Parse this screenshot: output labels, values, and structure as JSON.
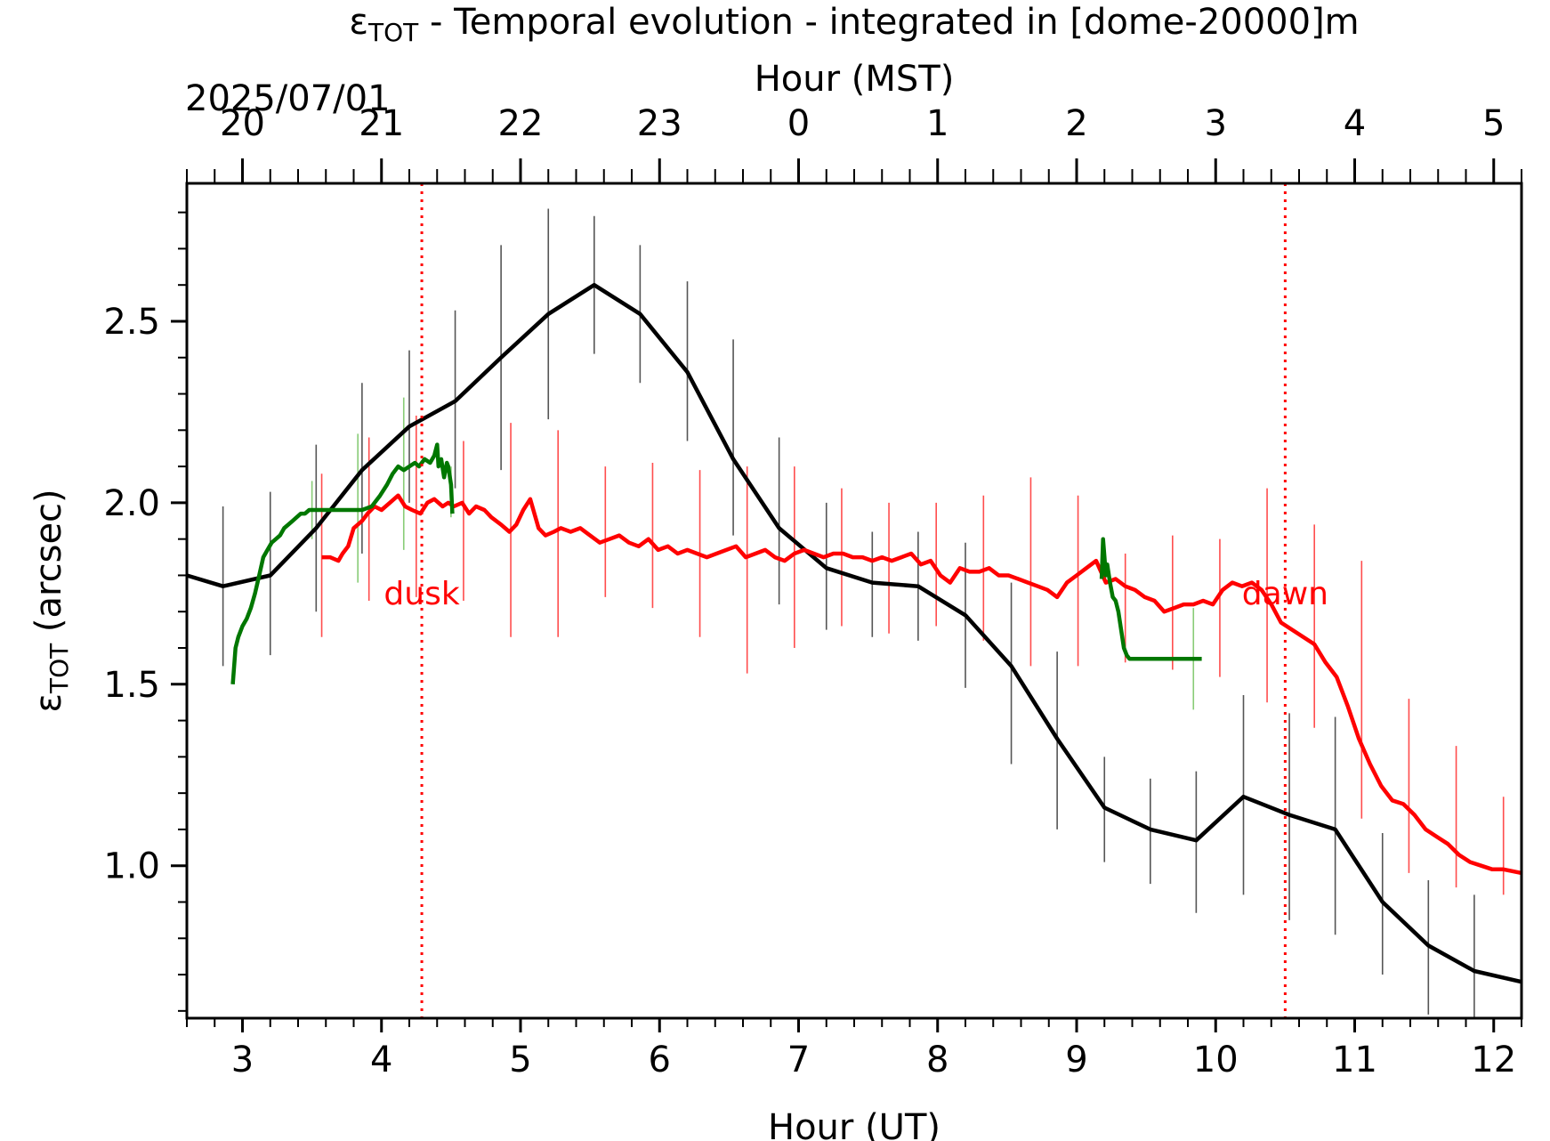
{
  "chart_data": {
    "type": "line",
    "title_main": "ε",
    "title_sub": "TOT",
    "title_rest": " - Temporal evolution - integrated in [dome-20000]m",
    "xlabel": "Hour (UT)",
    "xlabel_top": "Hour (MST)",
    "date_label": "2025/07/01",
    "ylabel_main": "ε",
    "ylabel_sub": "TOT",
    "ylabel_rest": " (arcsec)",
    "xlim": [
      2.6,
      12.2
    ],
    "ylim": [
      0.58,
      2.88
    ],
    "x_ticks": [
      3,
      4,
      5,
      6,
      7,
      8,
      9,
      10,
      11,
      12
    ],
    "x_tick_labels": [
      "3",
      "4",
      "5",
      "6",
      "7",
      "8",
      "9",
      "10",
      "11",
      "12"
    ],
    "y_ticks": [
      1.0,
      1.5,
      2.0,
      2.5
    ],
    "y_tick_labels": [
      "1.0",
      "1.5",
      "2.0",
      "2.5"
    ],
    "top_ticks_ut": [
      3,
      4,
      5,
      6,
      7,
      8,
      9,
      10,
      11,
      12
    ],
    "top_tick_labels": [
      "20",
      "21",
      "22",
      "23",
      "0",
      "1",
      "2",
      "3",
      "4",
      "5"
    ],
    "grid": false,
    "annotations": [
      {
        "text": "dusk",
        "x": 4.29,
        "y": 1.75,
        "color": "#ff0000"
      },
      {
        "text": "dawn",
        "x": 10.5,
        "y": 1.75,
        "color": "#ff0000"
      }
    ],
    "vlines": [
      {
        "x": 4.29,
        "color": "#ff0000",
        "style": "dotted"
      },
      {
        "x": 10.5,
        "color": "#ff0000",
        "style": "dotted"
      }
    ],
    "series": [
      {
        "color": "#000000",
        "width": 4.5,
        "x": [
          2.6,
          2.86,
          3.2,
          3.53,
          3.86,
          4.2,
          4.53,
          4.86,
          5.2,
          5.53,
          5.86,
          6.2,
          6.53,
          6.86,
          7.2,
          7.53,
          7.86,
          8.2,
          8.53,
          8.86,
          9.2,
          9.53,
          9.86,
          10.2,
          10.53,
          10.86,
          11.2,
          11.53,
          11.86,
          12.2
        ],
        "y": [
          1.8,
          1.77,
          1.8,
          1.93,
          2.09,
          2.21,
          2.28,
          2.4,
          2.52,
          2.6,
          2.52,
          2.36,
          2.12,
          1.93,
          1.82,
          1.78,
          1.77,
          1.69,
          1.55,
          1.35,
          1.16,
          1.1,
          1.07,
          1.19,
          1.14,
          1.1,
          0.9,
          0.78,
          0.71,
          0.68
        ],
        "err_low": [
          null,
          1.55,
          1.58,
          1.7,
          1.86,
          2.0,
          2.04,
          2.09,
          2.23,
          2.41,
          2.33,
          2.17,
          1.91,
          1.72,
          1.65,
          1.63,
          1.62,
          1.49,
          1.28,
          1.1,
          1.01,
          0.95,
          0.87,
          0.92,
          0.85,
          0.81,
          0.7,
          0.59,
          0.58,
          null
        ],
        "err_high": [
          null,
          1.99,
          2.03,
          2.16,
          2.33,
          2.42,
          2.53,
          2.71,
          2.81,
          2.79,
          2.71,
          2.61,
          2.45,
          2.18,
          2.0,
          1.92,
          1.92,
          1.89,
          1.78,
          1.59,
          1.3,
          1.24,
          1.26,
          1.47,
          1.42,
          1.41,
          1.09,
          0.96,
          0.92,
          null
        ],
        "err_color": "#555555"
      },
      {
        "color": "#ff0000",
        "width": 4.5,
        "x": [
          3.57,
          3.63,
          3.69,
          3.72,
          3.76,
          3.8,
          3.86,
          3.9,
          3.95,
          4.0,
          4.06,
          4.12,
          4.17,
          4.22,
          4.28,
          4.33,
          4.38,
          4.44,
          4.48,
          4.52,
          4.58,
          4.63,
          4.68,
          4.74,
          4.79,
          4.86,
          4.92,
          4.97,
          5.02,
          5.07,
          5.13,
          5.18,
          5.24,
          5.29,
          5.36,
          5.43,
          5.5,
          5.57,
          5.64,
          5.71,
          5.78,
          5.85,
          5.92,
          5.99,
          6.06,
          6.13,
          6.2,
          6.27,
          6.34,
          6.41,
          6.48,
          6.55,
          6.62,
          6.69,
          6.76,
          6.83,
          6.9,
          6.97,
          7.04,
          7.11,
          7.18,
          7.25,
          7.32,
          7.39,
          7.46,
          7.53,
          7.6,
          7.67,
          7.74,
          7.81,
          7.88,
          7.95,
          8.02,
          8.09,
          8.16,
          8.23,
          8.3,
          8.37,
          8.44,
          8.51,
          8.58,
          8.65,
          8.72,
          8.79,
          8.86,
          8.93,
          9.0,
          9.07,
          9.14,
          9.21,
          9.28,
          9.35,
          9.42,
          9.49,
          9.56,
          9.63,
          9.7,
          9.77,
          9.84,
          9.91,
          9.98,
          10.05,
          10.12,
          10.19,
          10.26,
          10.33,
          10.4,
          10.47,
          10.55,
          10.63,
          10.71,
          10.79,
          10.87,
          10.95,
          11.03,
          11.11,
          11.19,
          11.27,
          11.35,
          11.43,
          11.51,
          11.59,
          11.67,
          11.75,
          11.83,
          11.91,
          11.99,
          12.07,
          12.2
        ],
        "y": [
          1.85,
          1.85,
          1.84,
          1.86,
          1.88,
          1.93,
          1.95,
          1.97,
          1.99,
          1.98,
          2.0,
          2.02,
          1.99,
          1.98,
          1.97,
          2.0,
          2.01,
          1.99,
          2.0,
          1.99,
          2.0,
          1.97,
          1.99,
          1.98,
          1.96,
          1.94,
          1.92,
          1.94,
          1.98,
          2.01,
          1.93,
          1.91,
          1.92,
          1.93,
          1.92,
          1.93,
          1.91,
          1.89,
          1.9,
          1.91,
          1.89,
          1.88,
          1.9,
          1.87,
          1.88,
          1.86,
          1.87,
          1.86,
          1.85,
          1.86,
          1.87,
          1.88,
          1.85,
          1.86,
          1.87,
          1.85,
          1.84,
          1.86,
          1.87,
          1.86,
          1.85,
          1.86,
          1.86,
          1.85,
          1.85,
          1.84,
          1.85,
          1.84,
          1.85,
          1.86,
          1.83,
          1.84,
          1.8,
          1.78,
          1.82,
          1.81,
          1.81,
          1.82,
          1.8,
          1.8,
          1.79,
          1.78,
          1.77,
          1.76,
          1.74,
          1.78,
          1.8,
          1.82,
          1.84,
          1.78,
          1.79,
          1.77,
          1.76,
          1.74,
          1.73,
          1.7,
          1.71,
          1.72,
          1.72,
          1.73,
          1.72,
          1.76,
          1.78,
          1.77,
          1.78,
          1.76,
          1.72,
          1.67,
          1.65,
          1.63,
          1.61,
          1.56,
          1.52,
          1.44,
          1.35,
          1.28,
          1.22,
          1.18,
          1.17,
          1.14,
          1.1,
          1.08,
          1.06,
          1.03,
          1.01,
          1.0,
          0.99,
          0.99,
          0.98
        ],
        "err_x": [
          3.57,
          3.91,
          4.25,
          4.59,
          4.93,
          5.27,
          5.61,
          5.95,
          6.29,
          6.63,
          6.97,
          7.31,
          7.65,
          7.99,
          8.33,
          8.67,
          9.01,
          9.35,
          9.69,
          10.03,
          10.37,
          10.71,
          11.05,
          11.39,
          11.73,
          12.07
        ],
        "err_low": [
          1.63,
          1.73,
          1.74,
          1.73,
          1.63,
          1.63,
          1.74,
          1.71,
          1.63,
          1.53,
          1.6,
          1.66,
          1.64,
          1.66,
          1.62,
          1.55,
          1.55,
          1.56,
          1.54,
          1.52,
          1.45,
          1.38,
          1.13,
          0.98,
          0.94,
          0.92
        ],
        "err_high": [
          2.08,
          2.18,
          2.24,
          2.17,
          2.22,
          2.2,
          2.1,
          2.11,
          2.09,
          2.1,
          2.1,
          2.04,
          2.0,
          2.0,
          2.02,
          2.07,
          2.02,
          1.86,
          1.91,
          1.9,
          2.04,
          1.94,
          1.84,
          1.46,
          1.33,
          1.19
        ],
        "err_color": "#ff4d4d"
      },
      {
        "color": "#007700",
        "width": 4.5,
        "x": [
          2.93,
          2.95,
          2.97,
          3.0,
          3.03,
          3.06,
          3.09,
          3.12,
          3.15,
          3.18,
          3.21,
          3.24,
          3.27,
          3.3,
          3.33,
          3.36,
          3.39,
          3.42,
          3.45,
          3.48,
          3.52,
          3.6,
          3.7,
          3.8,
          3.86,
          3.93,
          3.99,
          4.04,
          4.08,
          4.12,
          4.16,
          4.2,
          4.24,
          4.27,
          4.31,
          4.35,
          4.38,
          4.4,
          4.41,
          4.43,
          4.45,
          4.47,
          4.48,
          4.5,
          4.51
        ],
        "y": [
          1.5,
          1.6,
          1.63,
          1.66,
          1.68,
          1.71,
          1.75,
          1.8,
          1.85,
          1.87,
          1.89,
          1.9,
          1.91,
          1.93,
          1.94,
          1.95,
          1.96,
          1.97,
          1.97,
          1.98,
          1.98,
          1.98,
          1.98,
          1.98,
          1.98,
          1.99,
          2.02,
          2.05,
          2.08,
          2.1,
          2.09,
          2.1,
          2.11,
          2.1,
          2.12,
          2.11,
          2.13,
          2.16,
          2.1,
          2.12,
          2.07,
          2.11,
          2.1,
          2.05,
          1.97
        ],
        "err_x": [
          3.5,
          3.83,
          4.16,
          4.5
        ],
        "err_low": [
          1.9,
          1.78,
          1.87,
          1.96
        ],
        "err_high": [
          2.06,
          2.19,
          2.29,
          2.1
        ],
        "err_color": "#88cc77"
      },
      {
        "color": "#007700",
        "width": 4.5,
        "x": [
          9.18,
          9.19,
          9.2,
          9.21,
          9.22,
          9.24,
          9.26,
          9.28,
          9.3,
          9.32,
          9.34,
          9.36,
          9.38,
          9.4,
          9.5,
          9.6,
          9.7,
          9.8,
          9.9
        ],
        "y": [
          1.79,
          1.9,
          1.85,
          1.8,
          1.83,
          1.78,
          1.74,
          1.73,
          1.7,
          1.65,
          1.6,
          1.58,
          1.57,
          1.57,
          1.57,
          1.57,
          1.57,
          1.57,
          1.57
        ],
        "err_x": [
          9.84
        ],
        "err_low": [
          1.43
        ],
        "err_high": [
          1.71
        ],
        "err_color": "#88cc77"
      }
    ]
  }
}
